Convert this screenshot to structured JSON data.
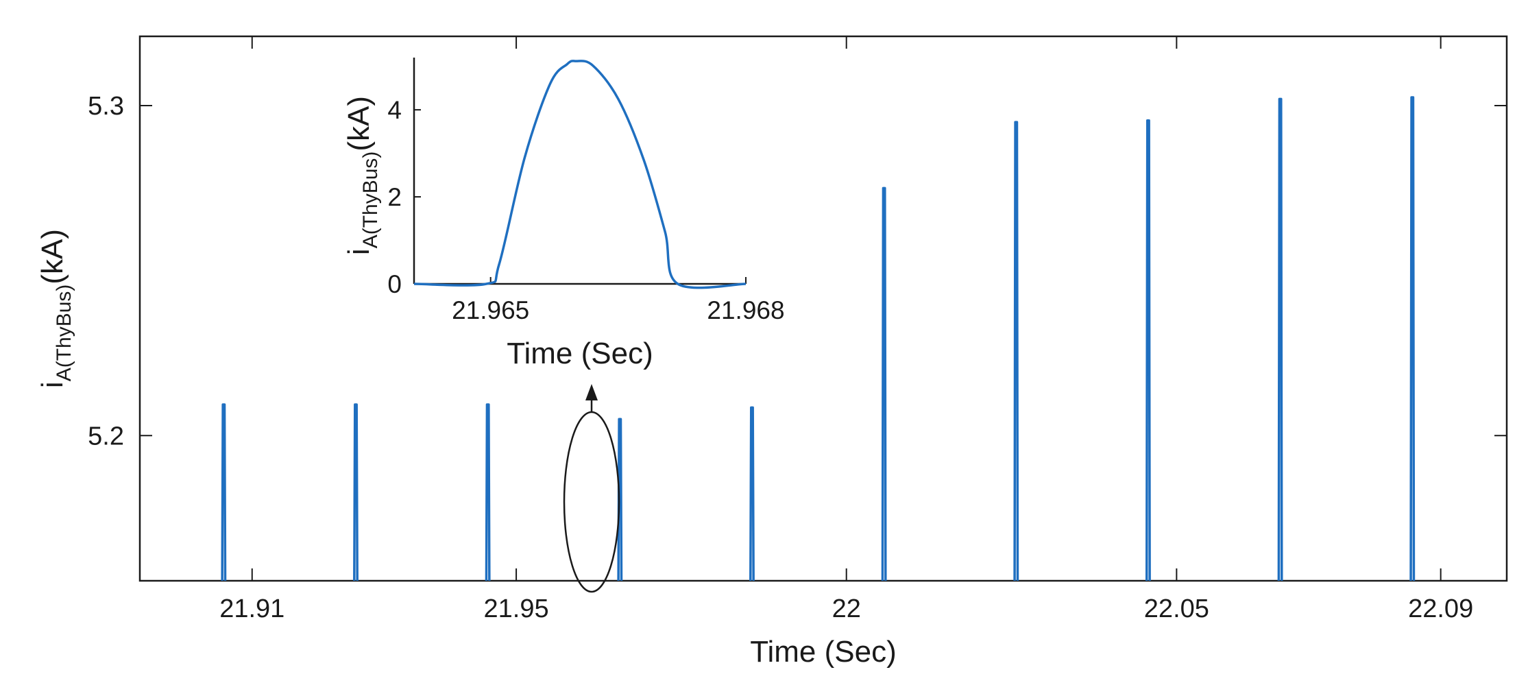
{
  "chart_data": [
    {
      "type": "line",
      "xlabel": "Time (Sec)",
      "ylabel": {
        "base": "i",
        "subscript": "A(ThyBus)",
        "suffix": "(kA)"
      },
      "xlim": [
        21.893,
        22.1
      ],
      "ylim": [
        5.156,
        5.321
      ],
      "xticks": [
        21.91,
        21.95,
        22,
        22.05,
        22.09
      ],
      "xtick_labels": [
        "21.91",
        "21.95",
        "22",
        "22.05",
        "22.09"
      ],
      "yticks": [
        5.2,
        5.3
      ],
      "ytick_labels": [
        "5.2",
        "5.3"
      ],
      "grid": false,
      "series": [
        {
          "color": "#1f6fc0",
          "peaks": [
            {
              "x": 21.9057,
              "y": 5.2094
            },
            {
              "x": 21.9257,
              "y": 5.2094
            },
            {
              "x": 21.9457,
              "y": 5.2094
            },
            {
              "x": 21.9657,
              "y": 5.205
            },
            {
              "x": 21.9857,
              "y": 5.2085
            },
            {
              "x": 22.0057,
              "y": 5.275
            },
            {
              "x": 22.0257,
              "y": 5.295
            },
            {
              "x": 22.0457,
              "y": 5.2955
            },
            {
              "x": 22.0657,
              "y": 5.302
            },
            {
              "x": 22.0857,
              "y": 5.3025
            }
          ]
        }
      ],
      "annotations": [
        {
          "type": "ellipse",
          "center": [
            21.9657,
            5.1775
          ],
          "label": ""
        },
        {
          "type": "arrow",
          "direction": "up",
          "points_to": "inset"
        }
      ]
    },
    {
      "type": "line",
      "role": "inset",
      "xlabel": "Time (Sec)",
      "ylabel": {
        "base": "i",
        "subscript": "A(ThyBus)",
        "suffix": "(kA)"
      },
      "xlim": [
        21.9641,
        21.968
      ],
      "ylim": [
        0,
        5.2
      ],
      "xticks": [
        21.965,
        21.968
      ],
      "xtick_labels": [
        "21.965",
        "21.968"
      ],
      "yticks": [
        0,
        2,
        4
      ],
      "ytick_labels": [
        "0",
        "2",
        "4"
      ],
      "grid": false,
      "series": [
        {
          "color": "#1f6fc0",
          "x": [
            21.9641,
            21.96495,
            21.9651,
            21.9654,
            21.9657,
            21.9659,
            21.966,
            21.9662,
            21.9665,
            21.9668,
            21.96705,
            21.9672,
            21.968
          ],
          "y": [
            0,
            0,
            0.45,
            2.9,
            4.6,
            5.05,
            5.12,
            5.02,
            4.25,
            2.85,
            1.2,
            0,
            0
          ]
        }
      ]
    }
  ]
}
